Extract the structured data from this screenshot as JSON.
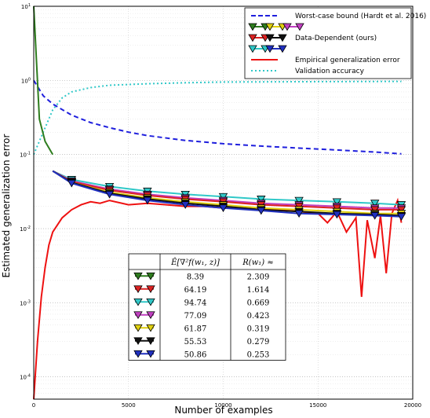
{
  "chart_data": {
    "type": "line",
    "xlabel": "Number of examples",
    "ylabel": "Estimated generalization error",
    "xlim": [
      0,
      20000
    ],
    "ylim": [
      5e-05,
      10
    ],
    "yscale": "log",
    "grid": true,
    "x_ticks": [
      "0",
      "5000",
      "10000",
      "15000",
      "20000"
    ],
    "y_ticks": [
      "10^1",
      "10^0",
      "10^-1",
      "10^-2",
      "10^-3",
      "10^-4"
    ],
    "legend_position": "top-right",
    "legend": [
      {
        "label": "Worst-case bound (Hardt et al. 2016)",
        "color": "#1f1fdd",
        "style": "dashed"
      },
      {
        "label": "",
        "markers": [
          "#2e7d1e",
          "#e0d010",
          "#c040c0"
        ]
      },
      {
        "label": "Data-Dependent (ours)",
        "markers": [
          "#dd2222",
          "#111111"
        ]
      },
      {
        "label": "",
        "markers": [
          "#30c8c8",
          "#2030c0"
        ]
      },
      {
        "label": "Empirical generalization error",
        "color": "#ee1111",
        "style": "solid"
      },
      {
        "label": "Validation accuracy",
        "color": "#30c8c8",
        "style": "dotted"
      }
    ],
    "series": [
      {
        "name": "Worst-case bound (Hardt et al. 2016)",
        "color": "#1f1fdd",
        "style": "dashed",
        "x": [
          0,
          500,
          1000,
          2000,
          3000,
          4000,
          5000,
          6000,
          8000,
          10000,
          12000,
          14000,
          16000,
          18000,
          19400
        ],
        "y": [
          1.0,
          0.62,
          0.48,
          0.34,
          0.27,
          0.23,
          0.2,
          0.18,
          0.155,
          0.14,
          0.13,
          0.122,
          0.115,
          0.108,
          0.102
        ]
      },
      {
        "name": "Validation accuracy",
        "color": "#30c8c8",
        "style": "dotted",
        "x": [
          0,
          500,
          1000,
          1500,
          2000,
          3000,
          4000,
          6000,
          8000,
          10000,
          14000,
          19400
        ],
        "y": [
          0.1,
          0.2,
          0.4,
          0.58,
          0.7,
          0.8,
          0.86,
          0.9,
          0.93,
          0.95,
          0.96,
          0.97
        ]
      },
      {
        "name": "Empirical generalization error",
        "color": "#ee1111",
        "style": "solid",
        "x": [
          0,
          200,
          400,
          600,
          800,
          1000,
          1500,
          2000,
          2500,
          3000,
          3500,
          4000,
          5000,
          6000,
          7000,
          8000,
          9000,
          10000,
          11000,
          12000,
          13000,
          14000,
          15000,
          15500,
          16000,
          16500,
          17000,
          17300,
          17600,
          18000,
          18300,
          18600,
          18900,
          19200,
          19400
        ],
        "y": [
          5e-05,
          0.0003,
          0.0012,
          0.003,
          0.006,
          0.009,
          0.014,
          0.018,
          0.021,
          0.023,
          0.022,
          0.024,
          0.021,
          0.022,
          0.021,
          0.02,
          0.02,
          0.019,
          0.019,
          0.018,
          0.018,
          0.017,
          0.016,
          0.012,
          0.017,
          0.009,
          0.014,
          0.0012,
          0.013,
          0.004,
          0.015,
          0.0025,
          0.016,
          0.024,
          0.012
        ]
      },
      {
        "name": "green",
        "color": "#2e7d1e",
        "value": 8.39,
        "r": 2.309,
        "x": [
          0,
          300,
          600,
          1000
        ],
        "y": [
          10,
          0.3,
          0.15,
          0.1
        ]
      },
      {
        "name": "red",
        "color": "#dd2222",
        "value": 64.19,
        "r": 1.614,
        "x": [
          1000,
          2000,
          4000,
          6000,
          8000,
          10000,
          12000,
          14000,
          16000,
          18000,
          19400
        ],
        "y": [
          0.06,
          0.043,
          0.033,
          0.028,
          0.025,
          0.023,
          0.021,
          0.02,
          0.019,
          0.018,
          0.018
        ]
      },
      {
        "name": "cyan",
        "color": "#30c8c8",
        "value": 94.74,
        "r": 0.669,
        "x": [
          1000,
          2000,
          4000,
          6000,
          8000,
          10000,
          12000,
          14000,
          16000,
          18000,
          19400
        ],
        "y": [
          0.06,
          0.046,
          0.037,
          0.032,
          0.029,
          0.027,
          0.025,
          0.024,
          0.023,
          0.022,
          0.021
        ]
      },
      {
        "name": "magenta",
        "color": "#c040c0",
        "value": 77.09,
        "r": 0.423,
        "x": [
          1000,
          2000,
          4000,
          6000,
          8000,
          10000,
          12000,
          14000,
          16000,
          18000,
          19400
        ],
        "y": [
          0.06,
          0.044,
          0.034,
          0.029,
          0.026,
          0.024,
          0.022,
          0.021,
          0.02,
          0.019,
          0.019
        ]
      },
      {
        "name": "yellow",
        "color": "#e0d010",
        "value": 61.87,
        "r": 0.319,
        "x": [
          1000,
          2000,
          4000,
          6000,
          8000,
          10000,
          12000,
          14000,
          16000,
          18000,
          19400
        ],
        "y": [
          0.06,
          0.042,
          0.031,
          0.026,
          0.023,
          0.021,
          0.019,
          0.018,
          0.017,
          0.016,
          0.016
        ]
      },
      {
        "name": "black",
        "color": "#111111",
        "value": 55.53,
        "r": 0.279,
        "x": [
          1000,
          2000,
          4000,
          6000,
          8000,
          10000,
          12000,
          14000,
          16000,
          18000,
          19400
        ],
        "y": [
          0.06,
          0.042,
          0.03,
          0.025,
          0.022,
          0.02,
          0.018,
          0.017,
          0.016,
          0.0155,
          0.015
        ]
      },
      {
        "name": "blue",
        "color": "#2030c0",
        "value": 50.86,
        "r": 0.253,
        "x": [
          1000,
          2000,
          4000,
          6000,
          8000,
          10000,
          12000,
          14000,
          16000,
          18000,
          19400
        ],
        "y": [
          0.06,
          0.041,
          0.029,
          0.024,
          0.021,
          0.019,
          0.0175,
          0.016,
          0.0155,
          0.015,
          0.0145
        ]
      }
    ],
    "table": {
      "header": [
        "",
        "Ê[∇²f(w₁, z)]",
        "R(w₁) ≈"
      ],
      "rows": [
        {
          "color": "#2e7d1e",
          "value": "8.39",
          "r": "2.309"
        },
        {
          "color": "#dd2222",
          "value": "64.19",
          "r": "1.614"
        },
        {
          "color": "#30c8c8",
          "value": "94.74",
          "r": "0.669"
        },
        {
          "color": "#c040c0",
          "value": "77.09",
          "r": "0.423"
        },
        {
          "color": "#e0d010",
          "value": "61.87",
          "r": "0.319"
        },
        {
          "color": "#111111",
          "value": "55.53",
          "r": "0.279"
        },
        {
          "color": "#2030c0",
          "value": "50.86",
          "r": "0.253"
        }
      ]
    }
  }
}
